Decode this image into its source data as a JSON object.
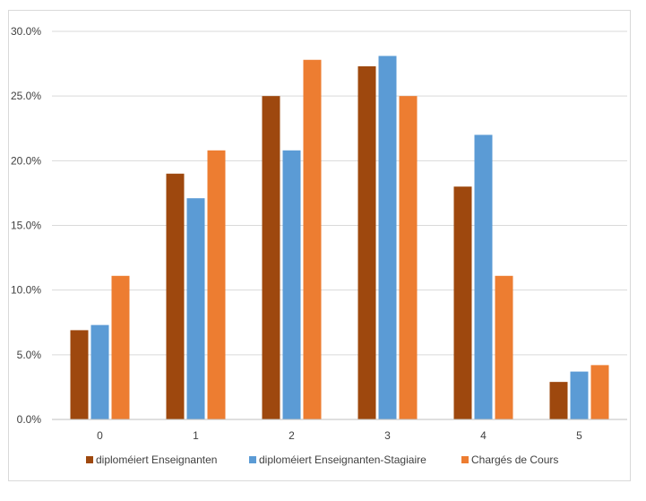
{
  "chart_data": {
    "type": "bar",
    "title": "",
    "xlabel": "",
    "ylabel": "",
    "categories": [
      "0",
      "1",
      "2",
      "3",
      "4",
      "5"
    ],
    "y_ticks": [
      "0.0%",
      "5.0%",
      "10.0%",
      "15.0%",
      "20.0%",
      "25.0%",
      "30.0%"
    ],
    "ylim": [
      0,
      30
    ],
    "y_unit": "percent",
    "grid": true,
    "legend_position": "bottom",
    "series": [
      {
        "name": "diploméiert Enseignanten",
        "color": "#9e480e",
        "values": [
          6.9,
          19.0,
          25.0,
          27.3,
          18.0,
          2.9
        ]
      },
      {
        "name": "diploméiert Enseignanten-Stagiaire",
        "color": "#5b9bd5",
        "values": [
          7.3,
          17.1,
          20.8,
          28.1,
          22.0,
          3.7
        ]
      },
      {
        "name": "Chargés de Cours",
        "color": "#ed7d31",
        "values": [
          11.1,
          20.8,
          27.8,
          25.0,
          11.1,
          4.2
        ]
      }
    ]
  }
}
